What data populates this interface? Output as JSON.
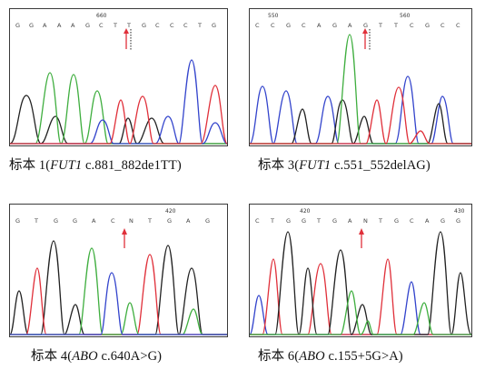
{
  "panels": [
    {
      "id": "s1",
      "position_label": "660",
      "bases": [
        "G",
        "G",
        "A",
        "A",
        "A",
        "G",
        "C",
        "T",
        "T",
        "G",
        "C",
        "C",
        "C",
        "T",
        "G"
      ],
      "caption": {
        "prefix": "标本 1(",
        "gene": "FUT1",
        "mutation": " c.881_882de1TT)"
      }
    },
    {
      "id": "s3",
      "position_label_left": "550",
      "position_label_right": "560",
      "bases": [
        "C",
        "C",
        "G",
        "C",
        "A",
        "G",
        "A",
        "G",
        "T",
        "T",
        "C",
        "G",
        "C",
        "C"
      ],
      "caption": {
        "prefix": "标本 3(",
        "gene": "FUT1",
        "mutation": " c.551_552delAG)"
      }
    },
    {
      "id": "s4",
      "position_label": "420",
      "bases": [
        "G",
        "T",
        "G",
        "G",
        "A",
        "C",
        "N",
        "T",
        "G",
        "A",
        "G"
      ],
      "caption": {
        "prefix": "标本 4(",
        "gene": "ABO",
        "mutation": " c.640A>G)"
      }
    },
    {
      "id": "s6",
      "position_label_left": "420",
      "position_label_right": "430",
      "bases": [
        "C",
        "T",
        "G",
        "G",
        "T",
        "G",
        "A",
        "N",
        "T",
        "G",
        "C",
        "A",
        "G",
        "G"
      ],
      "caption": {
        "prefix": "标本 6(",
        "gene": "ABO",
        "mutation": " c.155+5G>A)"
      }
    }
  ],
  "colors": {
    "A": "#3fae3f",
    "C": "#3344cc",
    "G": "#222222",
    "T": "#e0303a",
    "arrow": "#e0303a"
  }
}
